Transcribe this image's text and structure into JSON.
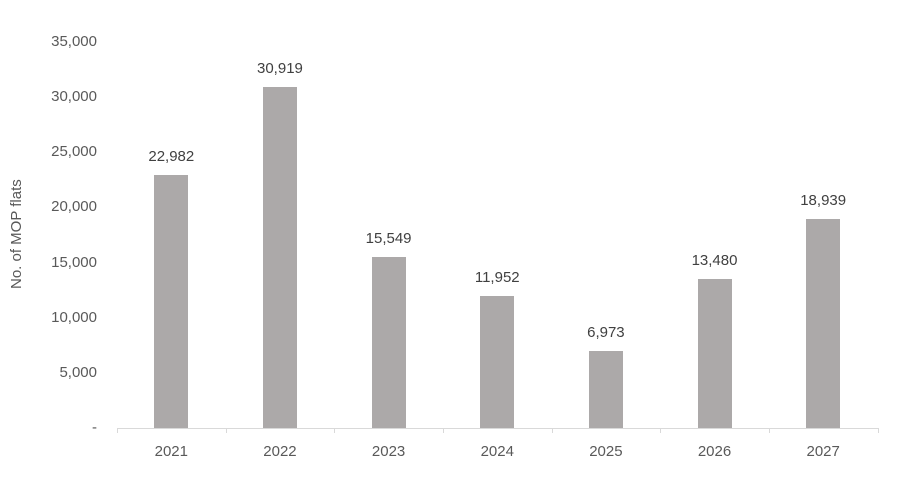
{
  "chart_data": {
    "type": "bar",
    "title": "",
    "xlabel": "",
    "ylabel": "No. of MOP flats",
    "categories": [
      "2021",
      "2022",
      "2023",
      "2024",
      "2025",
      "2026",
      "2027"
    ],
    "values": [
      22982,
      30919,
      15549,
      11952,
      6973,
      13480,
      18939
    ],
    "value_labels": [
      "22,982",
      "30,919",
      "15,549",
      "11,952",
      "6,973",
      "13,480",
      "18,939"
    ],
    "ylim": [
      0,
      35000
    ],
    "ytick_interval": 5000,
    "yticks": [
      {
        "value": 35000,
        "label": "35,000"
      },
      {
        "value": 30000,
        "label": "30,000"
      },
      {
        "value": 25000,
        "label": "25,000"
      },
      {
        "value": 20000,
        "label": "20,000"
      },
      {
        "value": 15000,
        "label": "15,000"
      },
      {
        "value": 10000,
        "label": "10,000"
      },
      {
        "value": 5000,
        "label": "5,000"
      },
      {
        "value": 0,
        "label": "-"
      }
    ],
    "grid": false,
    "legend": null,
    "colors": {
      "bar": "#aca9a9",
      "axis_line": "#d9d9d9",
      "tick_label": "#595959",
      "data_label": "#404040"
    }
  }
}
